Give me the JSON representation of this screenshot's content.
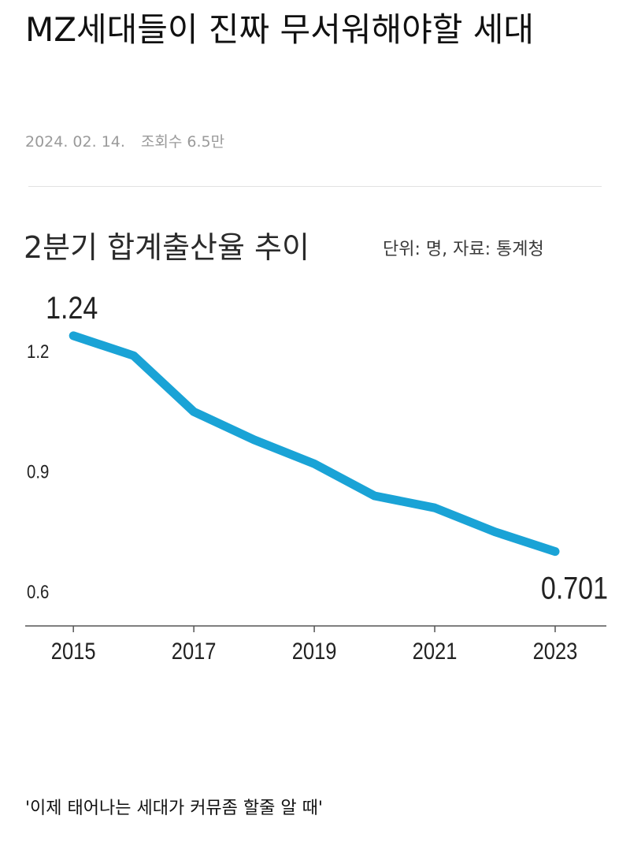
{
  "post": {
    "title": "MZ세대들이 진짜 무서워해야할 세대",
    "date": "2024. 02. 14.",
    "views": "조회수 6.5만",
    "caption": "'이제 태어나는 세대가 커뮤좀 할줄 알 때'"
  },
  "colors": {
    "line": "#1aa3d6",
    "axis": "#555555",
    "text": "#222222",
    "meta": "#9a9a9a"
  },
  "chart_data": {
    "type": "line",
    "title": "2분기 합계출산율 추이",
    "source_note": "단위: 명, 자료: 통계청",
    "x": [
      2015,
      2016,
      2017,
      2018,
      2019,
      2020,
      2021,
      2022,
      2023
    ],
    "x_tick_labels": [
      "2015",
      "2017",
      "2019",
      "2021",
      "2023"
    ],
    "y_tick_labels": [
      "1.2",
      "0.9",
      "0.6"
    ],
    "series": [
      {
        "values": [
          1.24,
          1.19,
          1.05,
          0.98,
          0.92,
          0.84,
          0.81,
          0.75,
          0.701
        ]
      }
    ],
    "data_labels": [
      {
        "x": 2015,
        "text": "1.24"
      },
      {
        "x": 2023,
        "text": "0.701"
      }
    ],
    "ylim": [
      0.515,
      1.35
    ],
    "xlim": [
      2014.2,
      2023.85
    ],
    "grid": false
  }
}
